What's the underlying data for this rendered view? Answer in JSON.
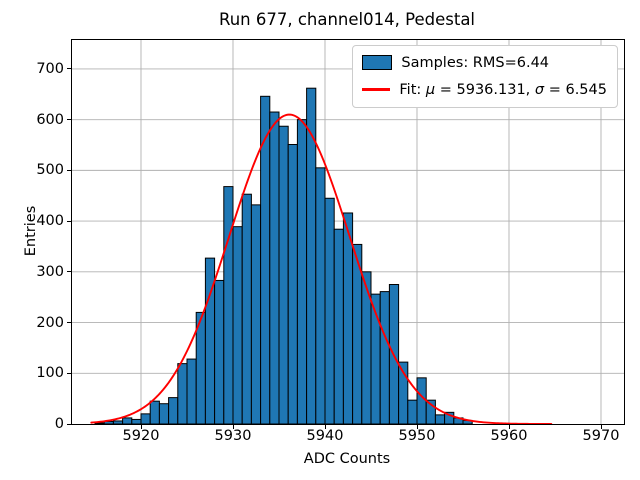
{
  "figure": {
    "title": "Run 677, channel014, Pedestal"
  },
  "chart_data": {
    "type": "bar",
    "subtype": "histogram-with-gaussian-fit",
    "title": "Run 677, channel014, Pedestal",
    "xlabel": "ADC Counts",
    "ylabel": "Entries",
    "xlim": [
      5912.5,
      5972.5
    ],
    "ylim": [
      0,
      757
    ],
    "x_ticks": [
      5920,
      5930,
      5940,
      5950,
      5960,
      5970
    ],
    "y_ticks": [
      0,
      100,
      200,
      300,
      400,
      500,
      600,
      700
    ],
    "grid": true,
    "legend_position": "upper right",
    "bin_width": 1,
    "bins_start": 5915,
    "bin_edges_note": "one bar per ADC count from 5915 to 5956",
    "values": [
      2,
      5,
      6,
      12,
      9,
      20,
      45,
      40,
      52,
      119,
      128,
      220,
      327,
      283,
      468,
      389,
      453,
      432,
      646,
      615,
      587,
      551,
      600,
      662,
      505,
      445,
      384,
      416,
      354,
      300,
      256,
      261,
      275,
      122,
      47,
      91,
      47,
      18,
      23,
      12,
      7
    ],
    "series": [
      {
        "name": "Samples: RMS=6.44",
        "kind": "histogram"
      },
      {
        "name": "Fit: μ = 5936.131, σ = 6.545",
        "kind": "gaussian-curve"
      }
    ],
    "fit": {
      "amplitude": 610,
      "mu": 5936.131,
      "sigma": 6.545,
      "x_start": 5914.6,
      "x_end": 5964.6
    },
    "legend": [
      {
        "swatch": "patch",
        "label": "Samples: RMS=6.44"
      },
      {
        "swatch": "line",
        "label": "Fit: μ = 5936.131, σ = 6.545"
      }
    ],
    "colors": {
      "bar_fill": "#1f77b4",
      "bar_edge": "#000000",
      "fit_line": "#ff0000",
      "grid": "#b0b0b0",
      "spine": "#000000",
      "legend_border": "#cccccc",
      "background": "#ffffff",
      "text": "#000000"
    }
  }
}
